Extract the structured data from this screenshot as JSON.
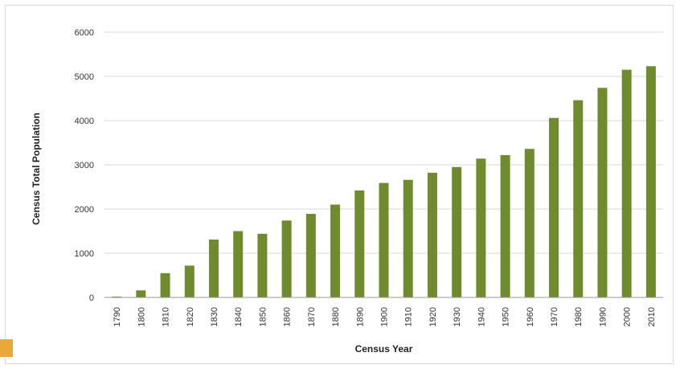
{
  "colors": {
    "bar": "#6e8b2e",
    "grid": "#d9d9d9",
    "axis": "#9a9a9a",
    "accent": "#e8a93a"
  },
  "chart_data": {
    "type": "bar",
    "title": "",
    "xlabel": "Census Year",
    "ylabel": "Census Total Population",
    "ylim": [
      0,
      6000
    ],
    "yticks": [
      0,
      1000,
      2000,
      3000,
      4000,
      5000,
      6000
    ],
    "grid": true,
    "categories": [
      "1790",
      "1800",
      "1810",
      "1820",
      "1830",
      "1840",
      "1850",
      "1860",
      "1870",
      "1880",
      "1890",
      "1900",
      "1910",
      "1920",
      "1930",
      "1940",
      "1950",
      "1960",
      "1970",
      "1980",
      "1990",
      "2000",
      "2010"
    ],
    "values": [
      20,
      160,
      550,
      720,
      1310,
      1500,
      1440,
      1740,
      1890,
      2100,
      2420,
      2590,
      2660,
      2820,
      2950,
      3140,
      3220,
      3360,
      4060,
      4460,
      4740,
      5150,
      5230
    ]
  }
}
